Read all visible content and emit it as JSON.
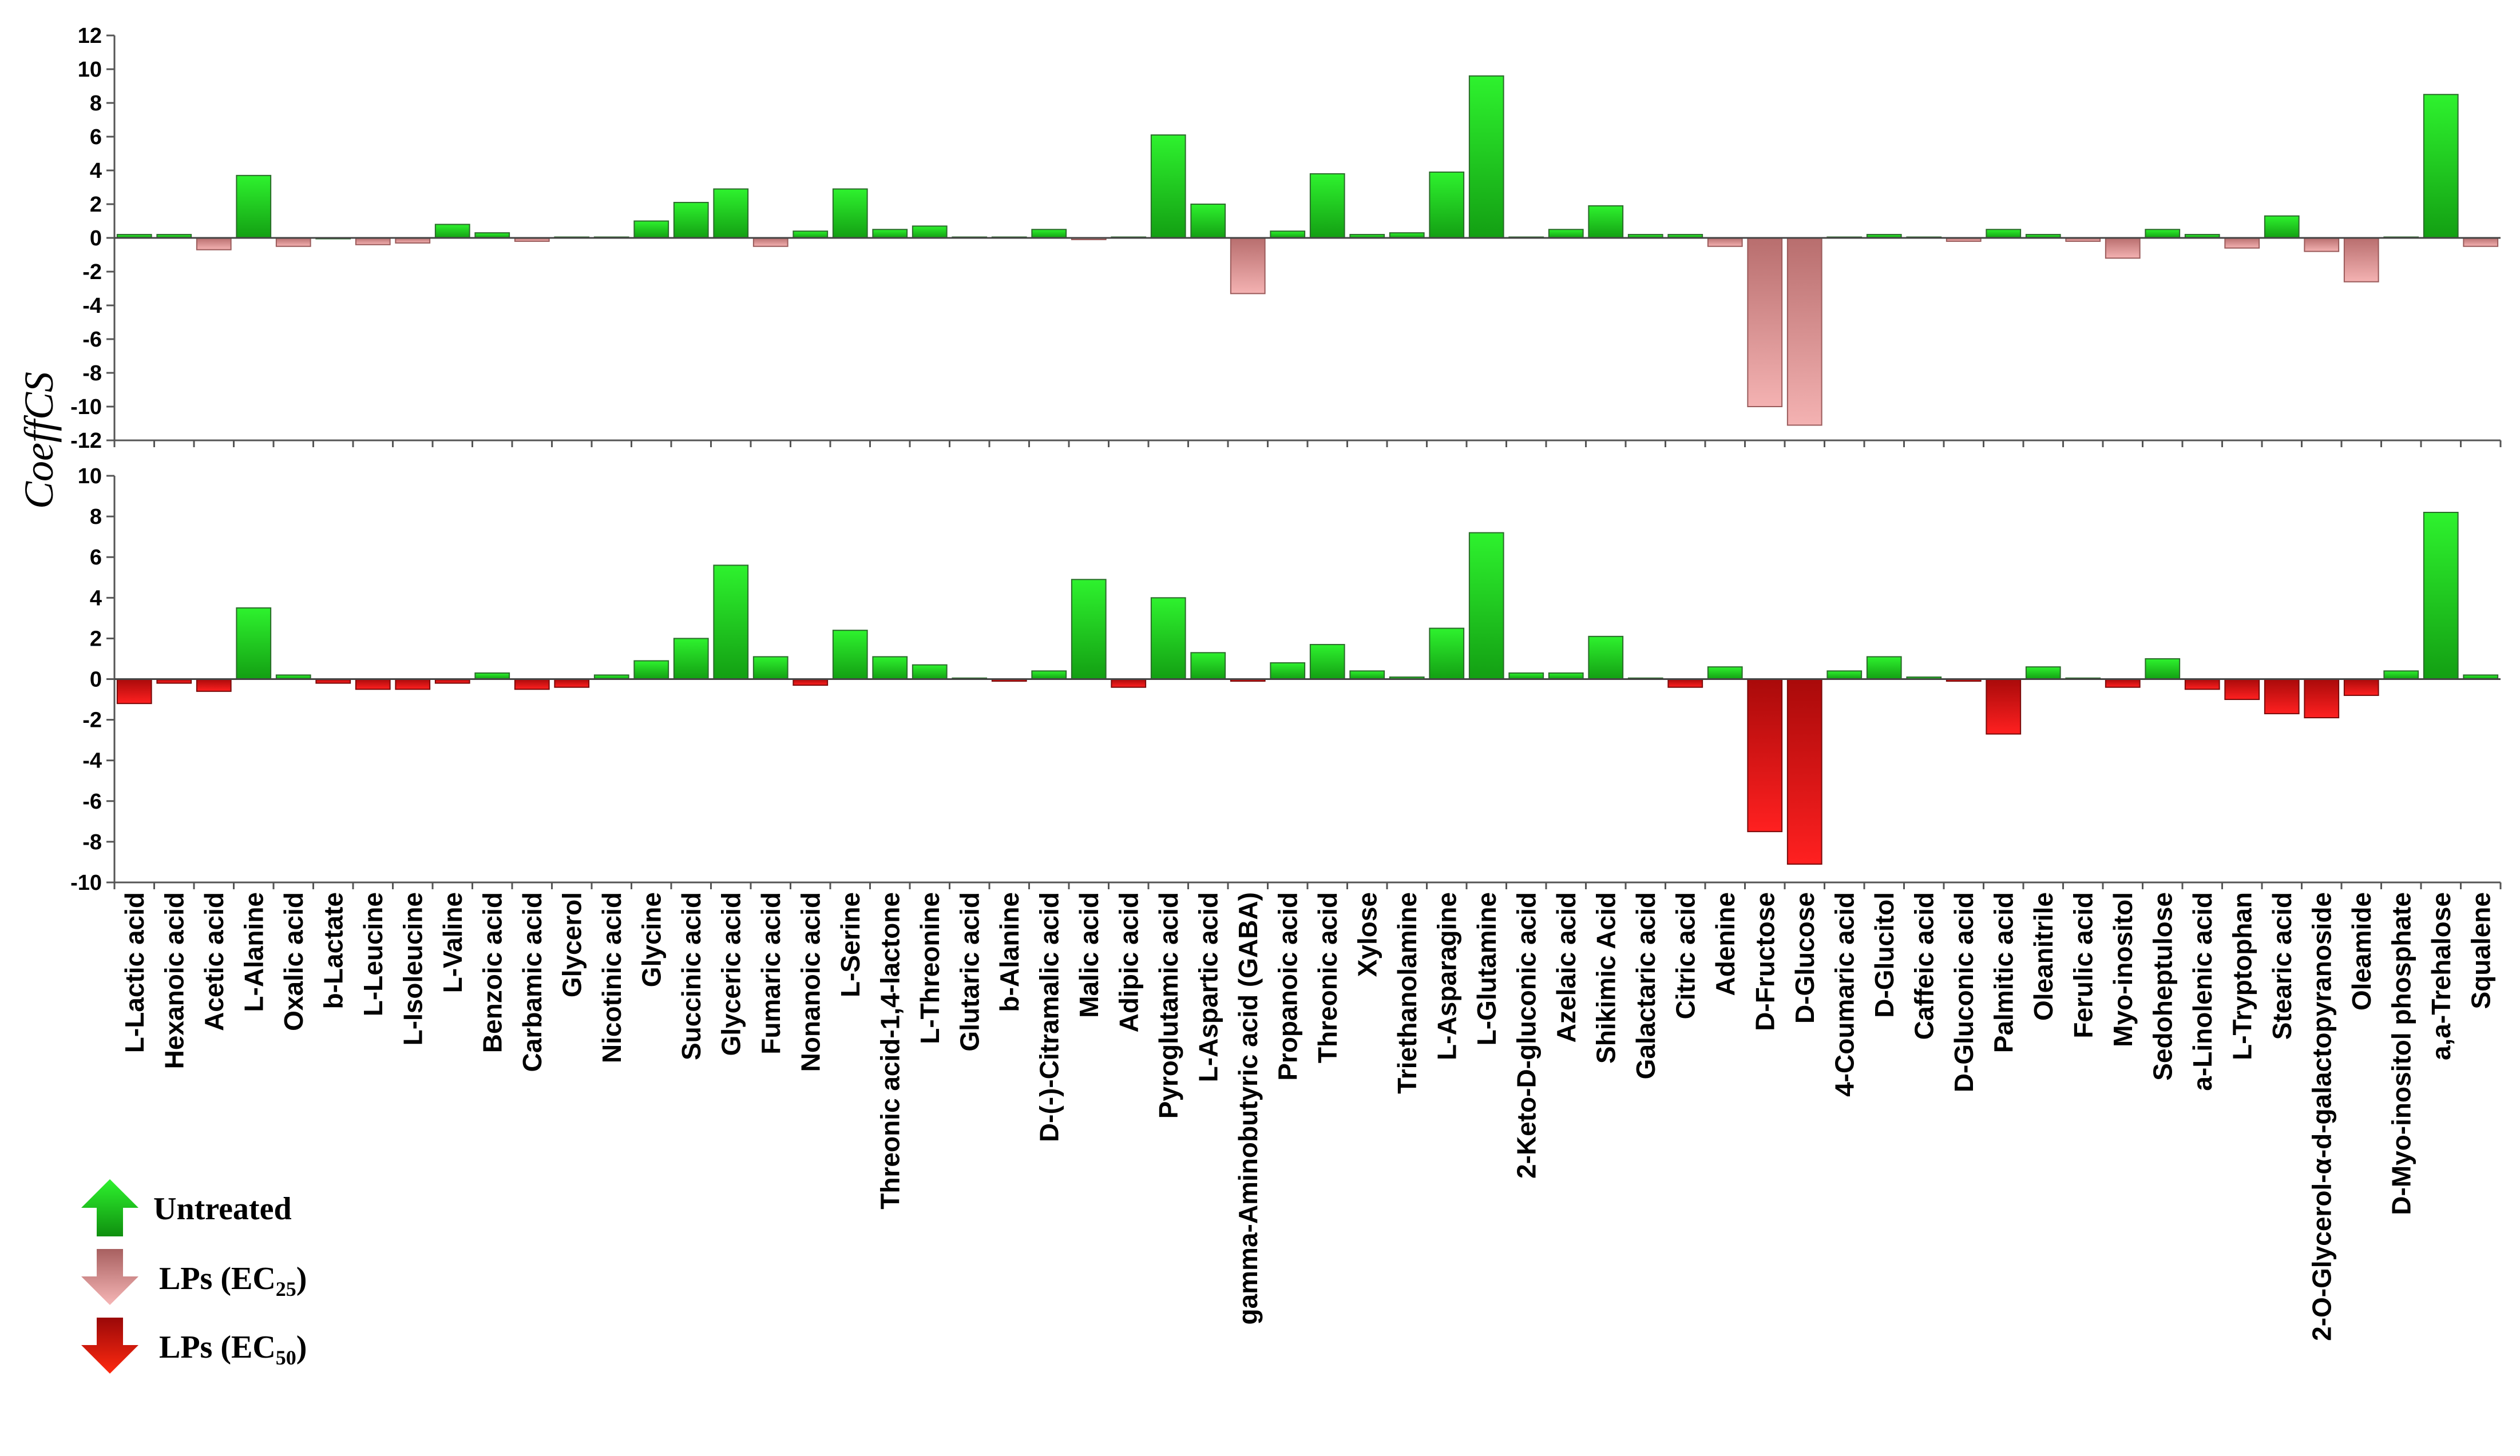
{
  "chart_data": {
    "type": "bar",
    "ylabel": "CoeffCS",
    "categories": [
      "L-Lactic acid",
      "Hexanoic acid",
      "Acetic acid",
      "L-Alanine",
      "Oxalic acid",
      "b-Lactate",
      "L-Leucine",
      "L-Isoleucine",
      "L-Valine",
      "Benzoic acid",
      "Carbamic acid",
      "Glycerol",
      "Nicotinic acid",
      "Glycine",
      "Succinic acid",
      "Glyceric acid",
      "Fumaric acid",
      "Nonanoic acid",
      "L-Serine",
      "Threonic acid-1,4-lactone",
      "L-Threonine",
      "Glutaric acid",
      "b-Alanine",
      "D-(-)-Citramalic acid",
      "Malic acid",
      "Adipic acid",
      "Pyroglutamic acid",
      "L-Aspartic acid",
      "gamma-Aminobutyric acid (GABA)",
      "Propanoic acid",
      "Threonic acid",
      "Xylose",
      "Triethanolamine",
      "L-Asparagine",
      "L-Glutamine",
      "2-Keto-D-gluconic acid",
      "Azelaic acid",
      "Shikimic Acid",
      "Galactaric acid",
      "Citric acid",
      "Adenine",
      "D-Fructose",
      "D-Glucose",
      "4-Coumaric acid",
      "D-Glucitol",
      "Caffeic acid",
      "D-Gluconic acid",
      "Palmitic acid",
      "Oleanitrile",
      "Ferulic acid",
      "Myo-inositol",
      "Sedoheptulose",
      "a-Linolenic acid",
      "L-Tryptophan",
      "Stearic acid",
      "2-O-Glycerol-α-d-galactopyranoside",
      "Oleamide",
      "D-Myo-inositol phosphate",
      "a,a-Trehalose",
      "Squalene"
    ],
    "panels": [
      {
        "name": "LPs (EC25) vs Untreated",
        "ylim": [
          -12,
          12
        ],
        "yticks": [
          "12",
          "10",
          "8",
          "6",
          "4",
          "2",
          "0",
          "-2",
          "-4",
          "-6",
          "-8",
          "-10",
          "-12"
        ],
        "values": [
          0.2,
          0.2,
          -0.7,
          3.7,
          -0.5,
          0,
          -0.4,
          -0.3,
          0.8,
          0.3,
          -0.2,
          0.05,
          0.05,
          1.0,
          2.1,
          2.9,
          -0.5,
          0.4,
          2.9,
          0.5,
          0.7,
          0.05,
          0.05,
          0.5,
          -0.1,
          0.05,
          6.1,
          2.0,
          -3.3,
          0.4,
          3.8,
          0.2,
          0.3,
          3.9,
          9.6,
          0.05,
          0.5,
          1.9,
          0.2,
          0.2,
          -0.5,
          -10.0,
          -11.1,
          0.05,
          0.2,
          0.05,
          -0.2,
          0.5,
          0.2,
          -0.2,
          -1.2,
          0.5,
          0.2,
          -0.6,
          1.3,
          -0.8,
          -2.6,
          0.05,
          8.5,
          -0.5
        ]
      },
      {
        "name": "LPs (EC50) vs Untreated",
        "ylim": [
          -10,
          10
        ],
        "yticks": [
          "10",
          "8",
          "6",
          "4",
          "2",
          "0",
          "-2",
          "-4",
          "-6",
          "-8",
          "-10"
        ],
        "values": [
          -1.2,
          -0.2,
          -0.6,
          3.5,
          0.2,
          -0.2,
          -0.5,
          -0.5,
          -0.2,
          0.3,
          -0.5,
          -0.4,
          0.2,
          0.9,
          2.0,
          5.6,
          1.1,
          -0.3,
          2.4,
          1.1,
          0.7,
          0.05,
          -0.1,
          0.4,
          4.9,
          -0.4,
          4.0,
          1.3,
          -0.1,
          0.8,
          1.7,
          0.4,
          0.1,
          2.5,
          7.2,
          0.3,
          0.3,
          2.1,
          0.05,
          -0.4,
          0.6,
          -7.5,
          -9.1,
          0.4,
          1.1,
          0.1,
          -0.1,
          -2.7,
          0.6,
          0.05,
          -0.4,
          1.0,
          -0.5,
          -1.0,
          -1.7,
          -1.9,
          -0.8,
          0.4,
          8.2,
          0.2
        ]
      }
    ],
    "legend": [
      {
        "label": "Untreated",
        "color": "#19c119"
      },
      {
        "label": "LPs (EC",
        "sub": "25",
        "suffix": ")",
        "color": "#d98c8c"
      },
      {
        "label": "LPs (EC",
        "sub": "50",
        "suffix": ")",
        "color": "#e11a1a"
      }
    ]
  }
}
